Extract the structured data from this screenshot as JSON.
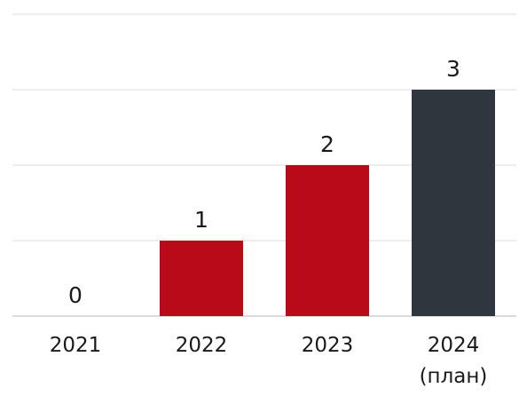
{
  "chart_data": {
    "type": "bar",
    "categories": [
      "2021",
      "2022",
      "2023",
      "2024"
    ],
    "category_sublabels": [
      "",
      "",
      "",
      "(план)"
    ],
    "values": [
      0,
      1,
      2,
      3
    ],
    "data_labels": [
      "0",
      "1",
      "2",
      "3"
    ],
    "bar_colors": [
      "#b90a1a",
      "#b90a1a",
      "#b90a1a",
      "#30363e"
    ],
    "ylim": [
      0,
      4
    ],
    "grid": true,
    "title": "",
    "xlabel": "",
    "ylabel": ""
  }
}
